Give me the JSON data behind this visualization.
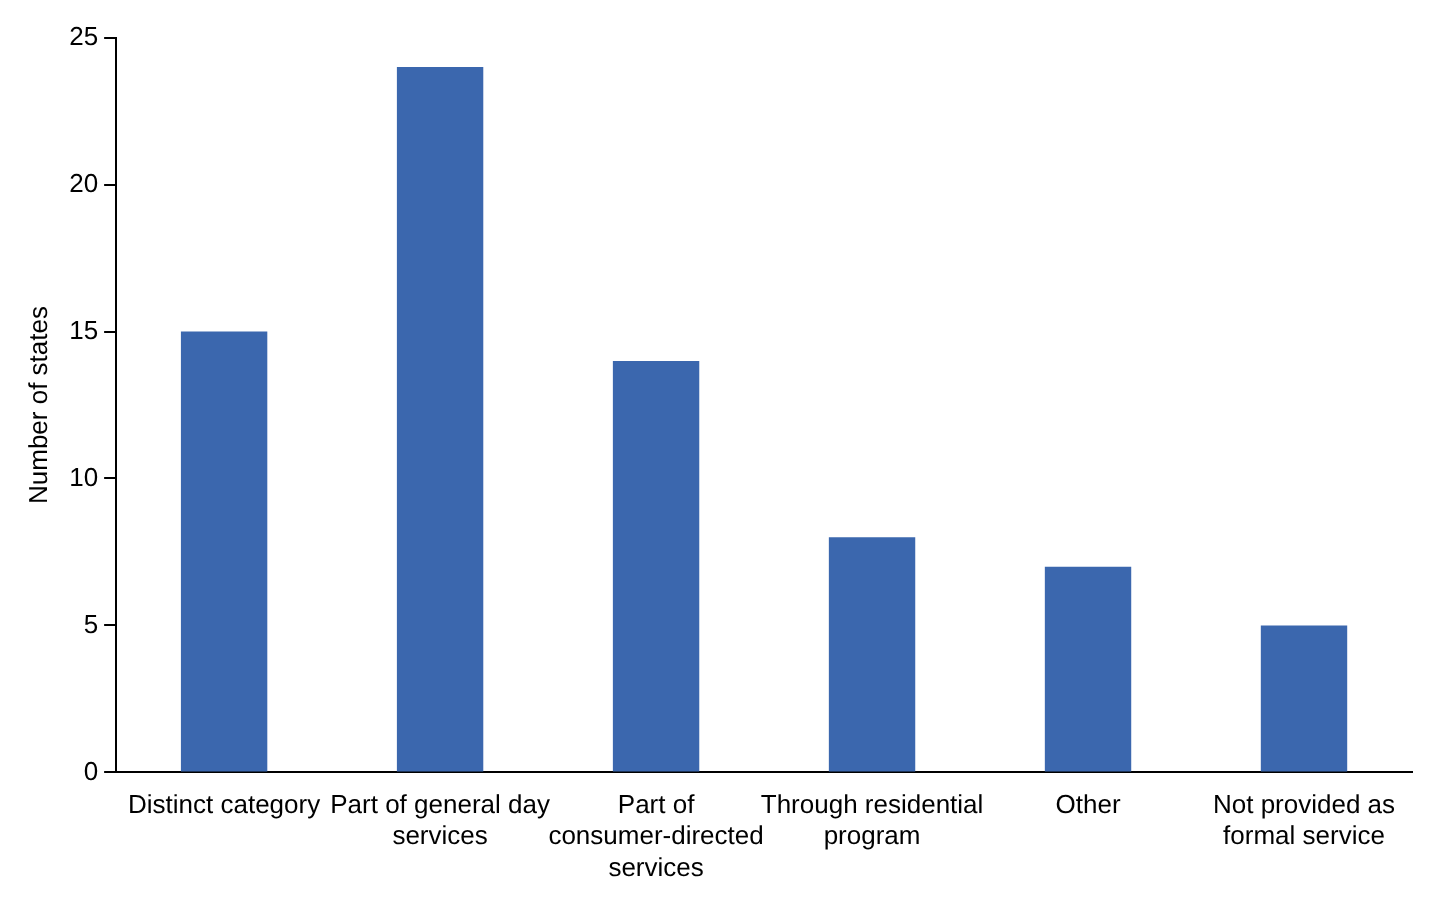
{
  "chart_data": {
    "type": "bar",
    "ylabel": "Number of states",
    "categories": [
      "Distinct category",
      "Part of general day services",
      "Part of consumer-directed services",
      "Through residential program",
      "Other",
      "Not provided as formal service"
    ],
    "values": [
      15,
      24,
      14,
      8,
      7,
      5
    ],
    "color": "#3b67ae",
    "ylim": [
      0,
      25
    ],
    "yticks": [
      0,
      5,
      10,
      15,
      20,
      25
    ],
    "grid": false,
    "legend": false
  }
}
